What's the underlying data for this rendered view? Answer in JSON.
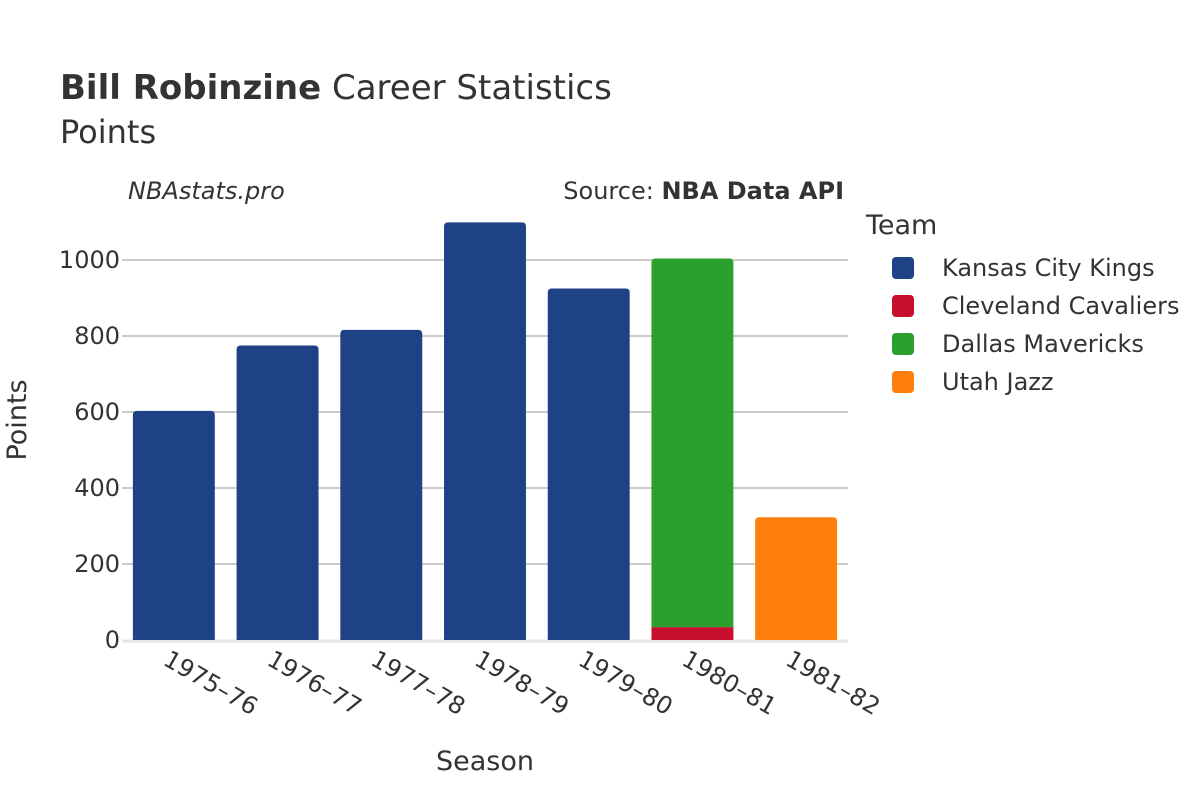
{
  "header": {
    "title_bold": "Bill Robinzine",
    "title_rest": "Career Statistics",
    "subtitle": "Points",
    "watermark": "NBAstats.pro",
    "source_prefix": "Source: ",
    "source_bold": "NBA Data API"
  },
  "legend": {
    "title": "Team",
    "placement": "right"
  },
  "chart_data": {
    "type": "bar",
    "stacked": true,
    "xlabel": "Season",
    "ylabel": "Points",
    "ylim": [
      0,
      1100
    ],
    "yticks": [
      0,
      200,
      400,
      600,
      800,
      1000
    ],
    "grid": true,
    "categories": [
      "1975–76",
      "1976–77",
      "1977–78",
      "1978–79",
      "1979–80",
      "1980–81",
      "1981–82"
    ],
    "series": [
      {
        "name": "Kansas City Kings",
        "color": "#1f4287",
        "values": [
          603,
          775,
          816,
          1099,
          925,
          0,
          0
        ]
      },
      {
        "name": "Cleveland Cavaliers",
        "color": "#c8102e",
        "values": [
          0,
          0,
          0,
          0,
          0,
          34,
          0
        ]
      },
      {
        "name": "Dallas Mavericks",
        "color": "#2ca02c",
        "values": [
          0,
          0,
          0,
          0,
          0,
          970,
          0
        ]
      },
      {
        "name": "Utah Jazz",
        "color": "#ff7f0e",
        "values": [
          0,
          0,
          0,
          0,
          0,
          0,
          323
        ]
      }
    ]
  }
}
